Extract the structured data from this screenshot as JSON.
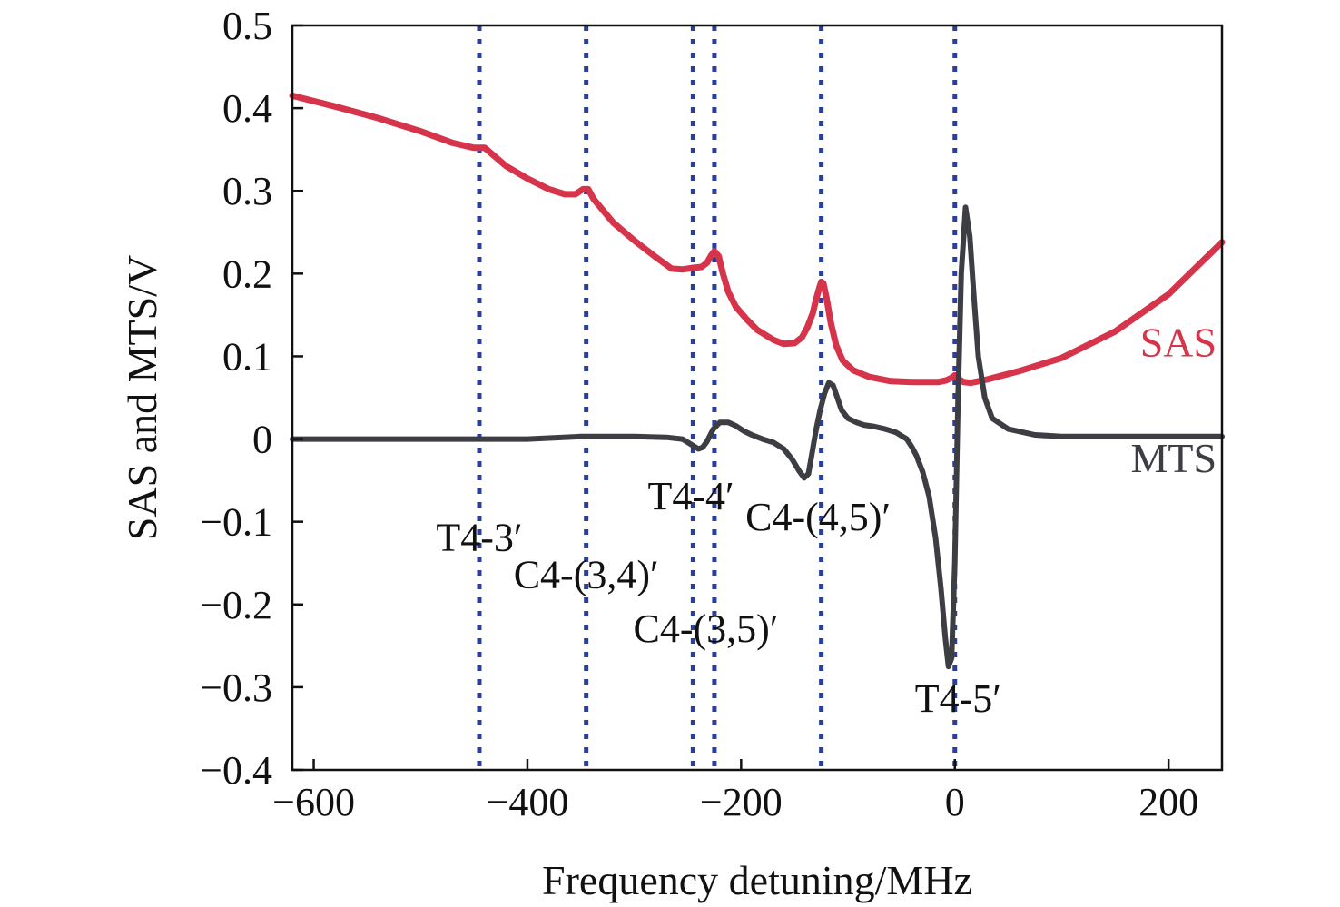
{
  "chart_data": {
    "type": "line",
    "title": "",
    "xlabel": "Frequency detuning/MHz",
    "ylabel": "SAS and MTS/V",
    "xlim": [
      -620,
      250
    ],
    "ylim": [
      -0.4,
      0.5
    ],
    "grid": false,
    "x_ticks": [
      -600,
      -400,
      -200,
      0,
      200
    ],
    "x_tick_labels": [
      "−600",
      "−400",
      "−200",
      "0",
      "200"
    ],
    "y_ticks": [
      0.5,
      0.4,
      0.3,
      0.2,
      0.1,
      0,
      -0.1,
      -0.2,
      -0.3,
      -0.4
    ],
    "y_tick_labels": [
      "0.5",
      "0.4",
      "0.3",
      "0.2",
      "0.1",
      "0",
      "−0.1",
      "−0.2",
      "−0.3",
      "−0.4"
    ],
    "vertical_lines": [
      {
        "x": -445,
        "label": "T4-3′",
        "label_x": -445,
        "label_y": -0.135
      },
      {
        "x": -345,
        "label": "C4-(3,4)′",
        "label_x": -345,
        "label_y": -0.18
      },
      {
        "x": -245,
        "label": "C4-(3,5)′",
        "label_x": -233,
        "label_y": -0.245
      },
      {
        "x": -225,
        "label": "T4-4′",
        "label_x": -247,
        "label_y": -0.085
      },
      {
        "x": -125,
        "label": "C4-(4,5)′",
        "label_x": -128,
        "label_y": -0.11
      },
      {
        "x": 0,
        "label": "T4-5′",
        "label_x": 3,
        "label_y": -0.33
      }
    ],
    "vline_color": "#2a3ea0",
    "series": [
      {
        "name": "SAS",
        "color": "#d6344a",
        "label_x": 245,
        "label_y": 0.1,
        "x": [
          -620,
          -580,
          -540,
          -500,
          -470,
          -450,
          -440,
          -420,
          -400,
          -380,
          -365,
          -355,
          -348,
          -343,
          -338,
          -320,
          -300,
          -280,
          -265,
          -255,
          -245,
          -237,
          -232,
          -228,
          -225,
          -221,
          -217,
          -212,
          -205,
          -195,
          -185,
          -170,
          -160,
          -150,
          -143,
          -138,
          -133,
          -130,
          -127,
          -125,
          -123,
          -120,
          -116,
          -111,
          -105,
          -95,
          -80,
          -60,
          -40,
          -25,
          -15,
          -8,
          -3,
          0,
          3,
          8,
          15,
          30,
          60,
          100,
          150,
          200,
          250
        ],
        "y": [
          0.415,
          0.402,
          0.388,
          0.372,
          0.358,
          0.352,
          0.352,
          0.33,
          0.315,
          0.302,
          0.296,
          0.296,
          0.302,
          0.302,
          0.29,
          0.262,
          0.24,
          0.22,
          0.206,
          0.205,
          0.207,
          0.208,
          0.213,
          0.222,
          0.227,
          0.221,
          0.2,
          0.178,
          0.16,
          0.145,
          0.132,
          0.12,
          0.115,
          0.116,
          0.123,
          0.135,
          0.152,
          0.168,
          0.182,
          0.19,
          0.188,
          0.17,
          0.14,
          0.113,
          0.095,
          0.083,
          0.075,
          0.07,
          0.069,
          0.069,
          0.069,
          0.071,
          0.074,
          0.077,
          0.073,
          0.069,
          0.068,
          0.072,
          0.082,
          0.098,
          0.13,
          0.175,
          0.238
        ]
      },
      {
        "name": "MTS",
        "color": "#3d3e44",
        "label_x": 245,
        "label_y": -0.04,
        "x": [
          -620,
          -560,
          -500,
          -450,
          -400,
          -350,
          -300,
          -270,
          -255,
          -245,
          -240,
          -236,
          -232,
          -226,
          -220,
          -212,
          -205,
          -198,
          -190,
          -180,
          -170,
          -160,
          -152,
          -146,
          -141,
          -137,
          -134,
          -130,
          -126,
          -122,
          -118,
          -114,
          -110,
          -106,
          -100,
          -92,
          -85,
          -75,
          -65,
          -55,
          -45,
          -40,
          -36,
          -30,
          -24,
          -18,
          -13,
          -9,
          -6,
          -3,
          0,
          3,
          6,
          10,
          14,
          18,
          22,
          28,
          35,
          50,
          75,
          100,
          150,
          200,
          250
        ],
        "y": [
          0.0,
          0.0,
          0.0,
          0.0,
          0.0,
          0.003,
          0.003,
          0.002,
          0.0,
          -0.008,
          -0.012,
          -0.01,
          -0.003,
          0.012,
          0.02,
          0.02,
          0.016,
          0.01,
          0.005,
          0.0,
          -0.004,
          -0.012,
          -0.025,
          -0.038,
          -0.047,
          -0.042,
          -0.02,
          0.01,
          0.035,
          0.055,
          0.068,
          0.065,
          0.05,
          0.035,
          0.025,
          0.02,
          0.017,
          0.015,
          0.012,
          0.008,
          0.0,
          -0.01,
          -0.02,
          -0.04,
          -0.07,
          -0.12,
          -0.18,
          -0.24,
          -0.275,
          -0.265,
          -0.15,
          0.05,
          0.2,
          0.28,
          0.245,
          0.17,
          0.1,
          0.05,
          0.025,
          0.012,
          0.005,
          0.003,
          0.003,
          0.003,
          0.003
        ]
      }
    ]
  }
}
